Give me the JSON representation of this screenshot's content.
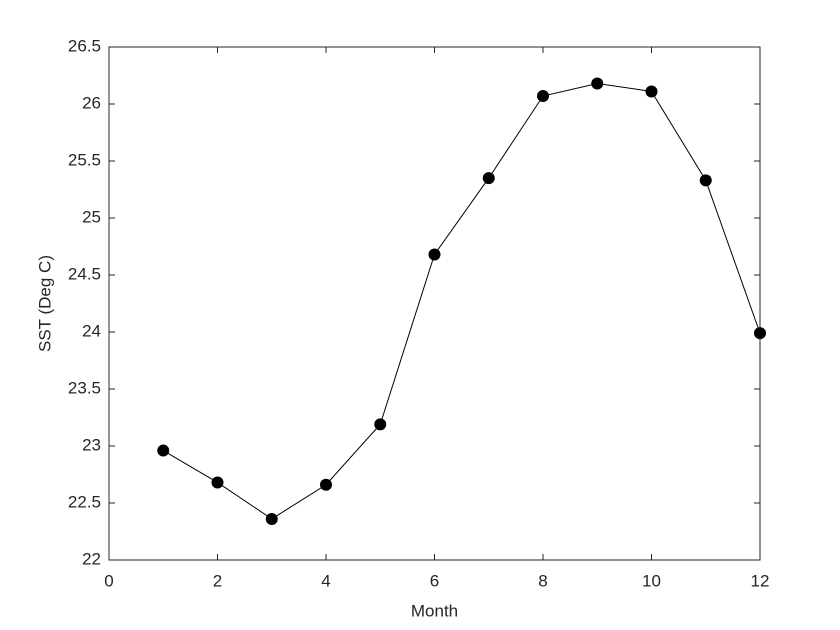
{
  "chart_data": {
    "type": "line",
    "x_label": "Month",
    "y_label": "SST (Deg C)",
    "x": [
      1,
      2,
      3,
      4,
      5,
      6,
      7,
      8,
      9,
      10,
      11,
      12
    ],
    "series": [
      {
        "name": "SST",
        "color": "#000000",
        "values": [
          22.96,
          22.68,
          22.36,
          22.66,
          23.19,
          24.68,
          25.35,
          26.07,
          26.18,
          26.11,
          25.33,
          23.99
        ]
      }
    ],
    "xlim": [
      0,
      12
    ],
    "xticks": [
      0,
      2,
      4,
      6,
      8,
      10,
      12
    ],
    "ylim": [
      22,
      26.5
    ],
    "yticks": [
      22,
      22.5,
      23,
      23.5,
      24,
      24.5,
      25,
      25.5,
      26,
      26.5
    ],
    "grid": false
  }
}
